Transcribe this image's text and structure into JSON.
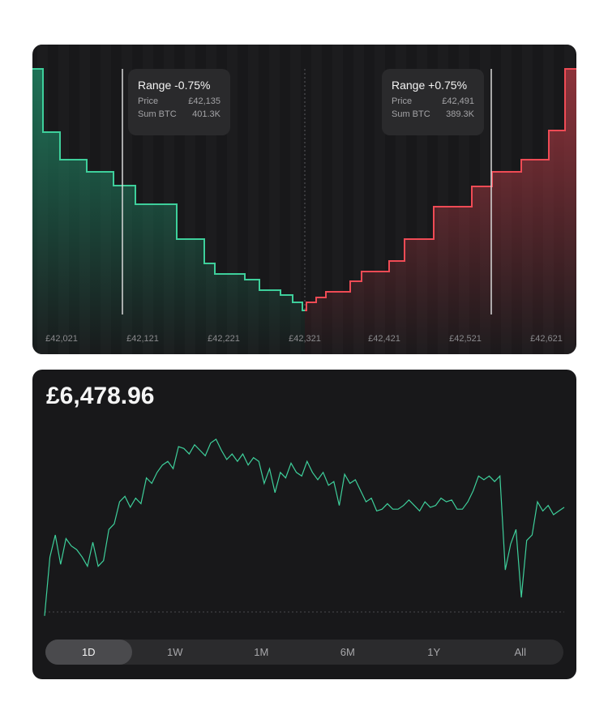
{
  "depth_chart": {
    "x_ticks": [
      "£42,021",
      "£42,121",
      "£42,221",
      "£42,321",
      "£42,421",
      "£42,521",
      "£42,621"
    ],
    "tooltip_left": {
      "title": "Range -0.75%",
      "price_label": "Price",
      "price_value": "£42,135",
      "sum_label": "Sum BTC",
      "sum_value": "401.3K"
    },
    "tooltip_right": {
      "title": "Range +0.75%",
      "price_label": "Price",
      "price_value": "£42,491",
      "sum_label": "Sum BTC",
      "sum_value": "389.3K"
    },
    "colors": {
      "bid": "#3ecf9b",
      "ask": "#ef4b55"
    }
  },
  "price_chart": {
    "value": "£6,478.96",
    "line_color": "#3ecf9b",
    "periods": [
      {
        "label": "1D",
        "active": true
      },
      {
        "label": "1W",
        "active": false
      },
      {
        "label": "1M",
        "active": false
      },
      {
        "label": "6M",
        "active": false
      },
      {
        "label": "1Y",
        "active": false
      },
      {
        "label": "All",
        "active": false
      }
    ]
  },
  "chart_data": [
    {
      "type": "area",
      "x_ticks": [
        "£42,021",
        "£42,121",
        "£42,221",
        "£42,321",
        "£42,421",
        "£42,521",
        "£42,621"
      ],
      "markers": [
        {
          "label": "Range -0.75%",
          "price": "£42,135",
          "sum_btc": "401.3K"
        },
        {
          "label": "Range +0.75%",
          "price": "£42,491",
          "sum_btc": "389.3K"
        }
      ]
    },
    {
      "type": "line",
      "title": "",
      "values": [
        8,
        40,
        52,
        36,
        50,
        46,
        44,
        40,
        35,
        48,
        35,
        38,
        55,
        58,
        70,
        73,
        67,
        72,
        69,
        83,
        80,
        86,
        90,
        92,
        88,
        100,
        99,
        96,
        101,
        98,
        95,
        102,
        104,
        98,
        93,
        96,
        92,
        96,
        90,
        94,
        92,
        80,
        88,
        75,
        86,
        83,
        91,
        86,
        84,
        92,
        86,
        82,
        86,
        79,
        81,
        68,
        85,
        80,
        82,
        76,
        70,
        72,
        65,
        66,
        69,
        66,
        66,
        68,
        71,
        68,
        65,
        70,
        67,
        68,
        72,
        70,
        71,
        66,
        66,
        70,
        76,
        84,
        82,
        84,
        81,
        84,
        33,
        47,
        55,
        18,
        49,
        52,
        70,
        65,
        68,
        63,
        65,
        67
      ]
    }
  ]
}
